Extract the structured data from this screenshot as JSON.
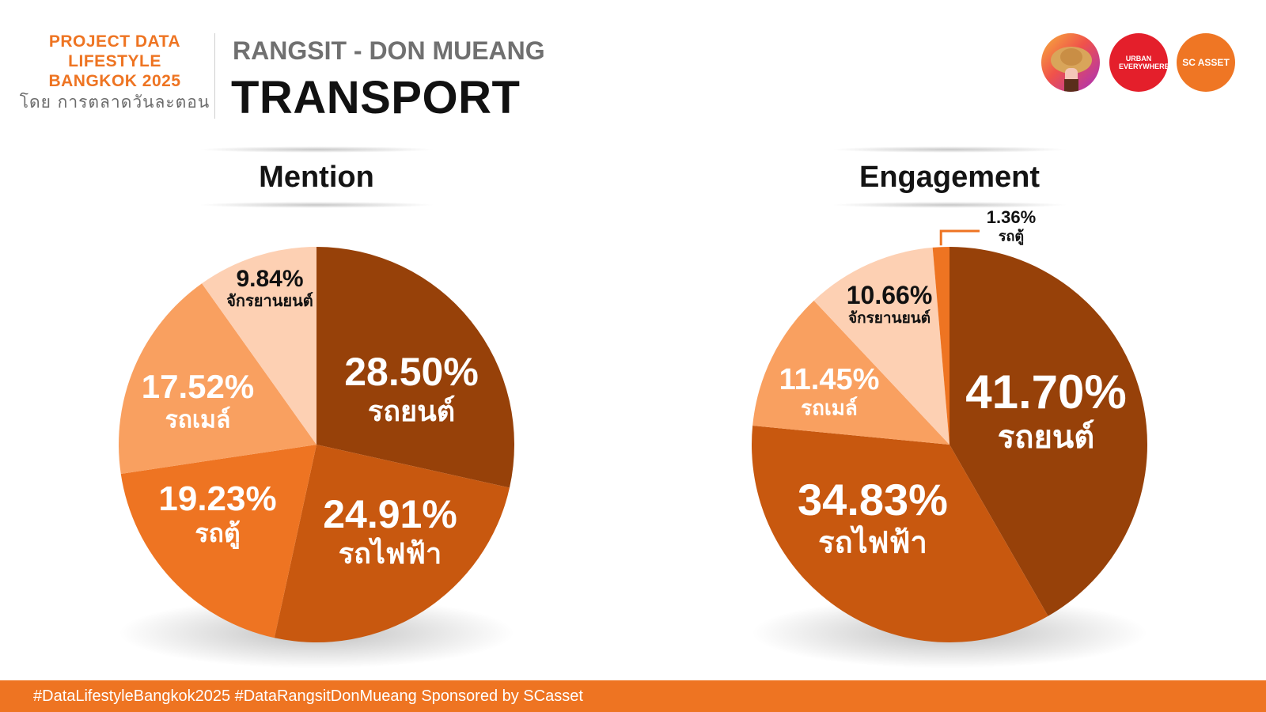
{
  "brand": {
    "line1": "PROJECT DATA",
    "line2": "LIFESTYLE",
    "line3": "BANGKOK 2025",
    "by": "โดย การตลาดวันละตอน"
  },
  "header": {
    "subtitle": "RANGSIT - DON MUEANG",
    "title": "TRANSPORT"
  },
  "logos": {
    "urban": "URBAN EVERYWHERE",
    "sc": "SC ASSET"
  },
  "colors": {
    "accent": "#ee7422",
    "car": "#974109",
    "train": "#c8580f",
    "van": "#ee7422",
    "bus": "#f9a060",
    "motorcycle": "#fdd0b3"
  },
  "chart_data": [
    {
      "type": "pie",
      "title": "Mention",
      "slices": [
        {
          "label": "รถยนต์",
          "value": 28.5,
          "value_label": "28.50%",
          "color": "#974109"
        },
        {
          "label": "รถไฟฟ้า",
          "value": 24.91,
          "value_label": "24.91%",
          "color": "#c8580f"
        },
        {
          "label": "รถตู้",
          "value": 19.23,
          "value_label": "19.23%",
          "color": "#ee7422"
        },
        {
          "label": "รถเมล์",
          "value": 17.52,
          "value_label": "17.52%",
          "color": "#f9a060"
        },
        {
          "label": "จักรยานยนต์",
          "value": 9.84,
          "value_label": "9.84%",
          "color": "#fdd0b3"
        }
      ]
    },
    {
      "type": "pie",
      "title": "Engagement",
      "slices": [
        {
          "label": "รถยนต์",
          "value": 41.7,
          "value_label": "41.70%",
          "color": "#974109"
        },
        {
          "label": "รถไฟฟ้า",
          "value": 34.83,
          "value_label": "34.83%",
          "color": "#c8580f"
        },
        {
          "label": "รถเมล์",
          "value": 11.45,
          "value_label": "11.45%",
          "color": "#f9a060"
        },
        {
          "label": "จักรยานยนต์",
          "value": 10.66,
          "value_label": "10.66%",
          "color": "#fdd0b3"
        },
        {
          "label": "รถตู้",
          "value": 1.36,
          "value_label": "1.36%",
          "color": "#ee7422"
        }
      ]
    }
  ],
  "footer": {
    "text": "#DataLifestyleBangkok2025 #DataRangsitDonMueang Sponsored by SCasset"
  }
}
